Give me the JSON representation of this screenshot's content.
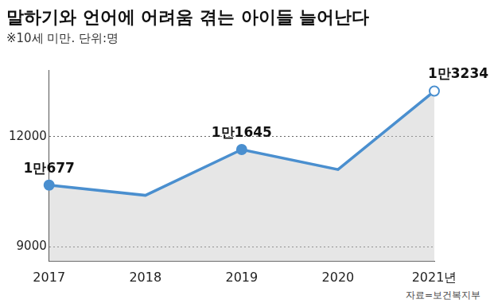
{
  "chart_data": {
    "type": "line",
    "title": "말하기와 언어에 어려움 겪는 아이들 늘어난다",
    "subtitle": "※10세 미만. 단위:명",
    "source": "자료=보건복지부",
    "categories": [
      "2017",
      "2018",
      "2019",
      "2020",
      "2021년"
    ],
    "values": [
      10677,
      10400,
      11645,
      11100,
      13234
    ],
    "value_labels": [
      "1만677",
      null,
      "1만1645",
      null,
      "1만3234"
    ],
    "color": "#4a8fcf",
    "ylim": [
      8600,
      13800
    ],
    "yticks": [
      9000,
      12000
    ],
    "grid": true,
    "data_labels": true
  }
}
